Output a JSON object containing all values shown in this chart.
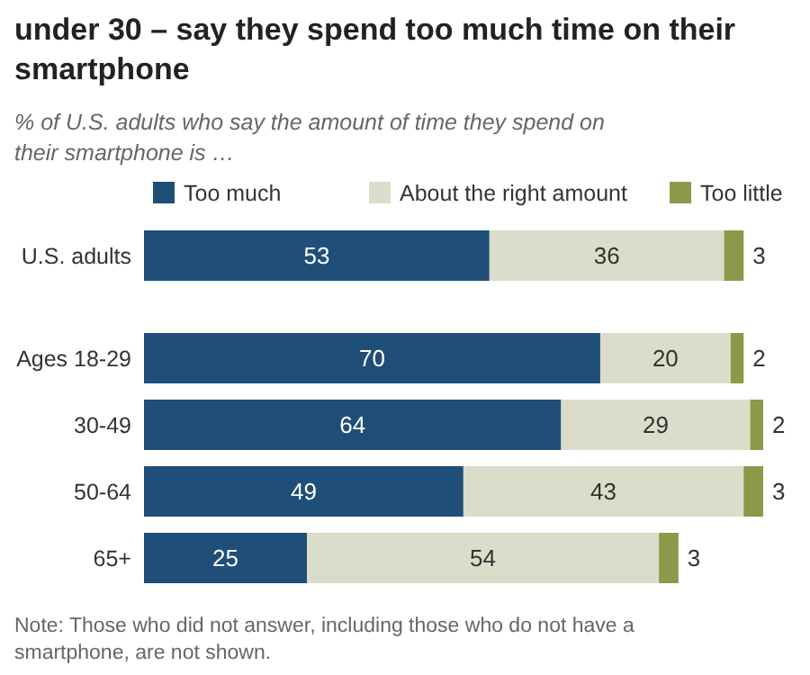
{
  "chart_data": {
    "type": "bar",
    "orientation": "horizontal",
    "stacked": true,
    "title": "under 30 – say they spend too much time on their smartphone",
    "subtitle": "% of U.S. adults who say the amount of time they spend on their smartphone is …",
    "categories": [
      "U.S. adults",
      "Ages 18-29",
      "30-49",
      "50-64",
      "65+"
    ],
    "series": [
      {
        "name": "Too much",
        "color": "#1f4e79",
        "values": [
          53,
          70,
          64,
          49,
          25
        ]
      },
      {
        "name": "About the right amount",
        "color": "#dcdcca",
        "values": [
          36,
          20,
          29,
          43,
          54
        ]
      },
      {
        "name": "Too little",
        "color": "#8a9a4a",
        "values": [
          3,
          2,
          2,
          3,
          3
        ]
      }
    ],
    "data_labels": true,
    "legend": "top",
    "tick_labels": "y",
    "annotations": [
      "Note: Those who did not answer, including those who do not have a smartphone, are not shown."
    ]
  }
}
